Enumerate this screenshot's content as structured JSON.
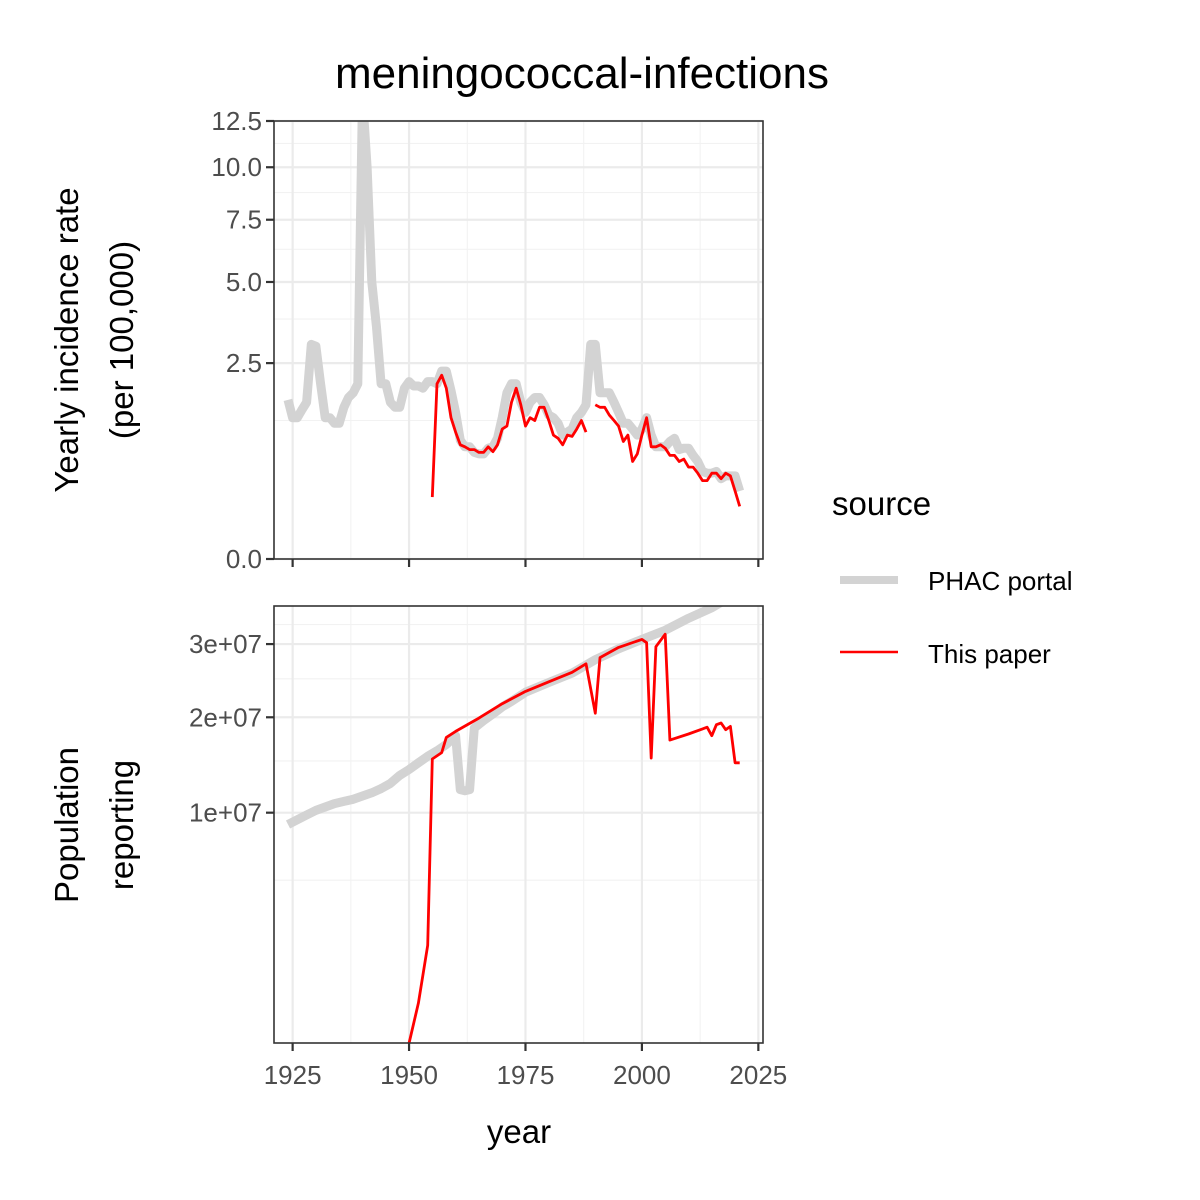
{
  "title": "meningococcal-infections",
  "colors": {
    "phac": "#d3d3d3",
    "paper": "#ff0000"
  },
  "chart_data": [
    {
      "type": "line",
      "panel": "top",
      "ylabel_lines": [
        "Yearly incidence rate",
        "(per 100,000)"
      ],
      "y_scale": "sqrt",
      "ylim": [
        0,
        12.5
      ],
      "y_ticks": [
        0,
        2.5,
        5,
        7.5,
        10,
        12.5
      ],
      "y_tick_labels": [
        "0.0",
        "2.5",
        "5.0",
        "7.5",
        "10.0",
        "12.5"
      ],
      "x_ticks": [
        1925,
        1950,
        1975,
        2000,
        2025
      ],
      "xlim": [
        1921,
        2026
      ],
      "grid": true,
      "series": [
        {
          "name": "PHAC portal",
          "x": [
            1924,
            1925,
            1926,
            1927,
            1928,
            1929,
            1930,
            1931,
            1932,
            1933,
            1934,
            1935,
            1936,
            1937,
            1938,
            1939,
            1940,
            1941,
            1942,
            1943,
            1944,
            1945,
            1946,
            1947,
            1948,
            1949,
            1950,
            1951,
            1952,
            1953,
            1954,
            1955,
            1956,
            1957,
            1958,
            1959,
            1960,
            1961,
            1962,
            1963,
            1964,
            1965,
            1966,
            1967,
            1968,
            1969,
            1970,
            1971,
            1972,
            1973,
            1974,
            1975,
            1976,
            1977,
            1978,
            1979,
            1980,
            1981,
            1982,
            1983,
            1984,
            1985,
            1986,
            1987,
            1988,
            1989,
            1990,
            1991,
            1992,
            1993,
            1994,
            1995,
            1996,
            1997,
            1998,
            1999,
            2000,
            2001,
            2002,
            2003,
            2004,
            2005,
            2006,
            2007,
            2008,
            2009,
            2010,
            2011,
            2012,
            2013,
            2014,
            2015,
            2016,
            2017,
            2018,
            2019,
            2020,
            2021
          ],
          "y": [
            1.65,
            1.3,
            1.3,
            1.45,
            1.6,
            3.0,
            2.95,
            2.0,
            1.3,
            1.3,
            1.2,
            1.2,
            1.5,
            1.7,
            1.8,
            2.0,
            14.0,
            10.0,
            5.0,
            3.5,
            2.0,
            2.0,
            1.6,
            1.5,
            1.5,
            1.9,
            2.05,
            1.95,
            1.95,
            1.9,
            2.05,
            2.05,
            2.0,
            2.3,
            2.3,
            1.85,
            1.4,
            0.92,
            0.82,
            0.82,
            0.74,
            0.72,
            0.72,
            0.8,
            0.82,
            0.95,
            1.3,
            1.8,
            2.0,
            2.0,
            1.6,
            1.4,
            1.6,
            1.7,
            1.7,
            1.55,
            1.35,
            1.3,
            1.2,
            1.0,
            1.05,
            1.1,
            1.3,
            1.4,
            1.55,
            3.0,
            3.0,
            1.8,
            1.8,
            1.8,
            1.6,
            1.4,
            1.2,
            1.2,
            1.1,
            1.0,
            1.1,
            1.3,
            1.0,
            0.82,
            0.82,
            0.82,
            0.9,
            0.95,
            0.78,
            0.8,
            0.8,
            0.7,
            0.62,
            0.5,
            0.48,
            0.48,
            0.5,
            0.42,
            0.45,
            0.45,
            0.45,
            0.3
          ]
        },
        {
          "name": "This paper",
          "x": [
            1955,
            1956,
            1957,
            1958,
            1959,
            1960,
            1961,
            1962,
            1963,
            1964,
            1965,
            1966,
            1967,
            1968,
            1969,
            1970,
            1971,
            1972,
            1973,
            1974,
            1975,
            1976,
            1977,
            1978,
            1979,
            1980,
            1981,
            1982,
            1983,
            1984,
            1985,
            1986,
            1987,
            1988,
            null,
            1990,
            1991,
            1992,
            1993,
            1994,
            1995,
            1996,
            1997,
            1998,
            1999,
            2000,
            2001,
            2002,
            2003,
            2004,
            2005,
            2006,
            2007,
            2008,
            2009,
            2010,
            2011,
            2012,
            2013,
            2014,
            2015,
            2016,
            2017,
            2018,
            2019,
            2020,
            2021
          ],
          "y": [
            0.25,
            2.0,
            2.2,
            1.9,
            1.3,
            1.05,
            0.85,
            0.82,
            0.78,
            0.78,
            0.74,
            0.74,
            0.82,
            0.75,
            0.85,
            1.1,
            1.15,
            1.6,
            1.9,
            1.55,
            1.15,
            1.3,
            1.25,
            1.5,
            1.5,
            1.25,
            1.0,
            0.95,
            0.85,
            1.0,
            0.98,
            1.1,
            1.25,
            1.05,
            null,
            1.55,
            1.5,
            1.5,
            1.35,
            1.25,
            1.15,
            0.9,
            1.0,
            0.62,
            0.72,
            1.0,
            1.3,
            0.82,
            0.82,
            0.85,
            0.8,
            0.7,
            0.7,
            0.62,
            0.65,
            0.55,
            0.55,
            0.48,
            0.4,
            0.4,
            0.48,
            0.48,
            0.42,
            0.48,
            0.45,
            0.3,
            0.18
          ]
        }
      ]
    },
    {
      "type": "line",
      "panel": "bottom",
      "ylabel_lines": [
        "Population",
        "reporting"
      ],
      "y_scale": "sqrt",
      "ylim": [
        0,
        36000000
      ],
      "y_ticks": [
        10000000,
        20000000,
        30000000
      ],
      "y_tick_labels": [
        "1e+07",
        "2e+07",
        "3e+07"
      ],
      "x_ticks": [
        1925,
        1950,
        1975,
        2000,
        2025
      ],
      "x_tick_labels": [
        "1925",
        "1950",
        "1975",
        "2000",
        "2025"
      ],
      "xlim": [
        1921,
        2026
      ],
      "xlabel": "year",
      "grid": true,
      "series": [
        {
          "name": "PHAC portal",
          "x": [
            1924,
            1926,
            1928,
            1930,
            1932,
            1934,
            1936,
            1938,
            1940,
            1942,
            1944,
            1946,
            1948,
            1950,
            1952,
            1954,
            1956,
            1958,
            1960,
            1961,
            1962,
            1963,
            1964,
            1966,
            1968,
            1970,
            1972,
            1975,
            1980,
            1985,
            1990,
            1995,
            2000,
            2005,
            2010,
            2015,
            2020,
            2021
          ],
          "y": [
            9000000,
            9400000,
            9800000,
            10200000,
            10500000,
            10800000,
            11000000,
            11200000,
            11500000,
            11800000,
            12200000,
            12700000,
            13500000,
            14100000,
            14800000,
            15500000,
            16100000,
            16800000,
            17800000,
            12100000,
            12000000,
            12100000,
            18700000,
            19600000,
            20400000,
            21300000,
            22000000,
            23200000,
            24500000,
            25800000,
            27700000,
            29300000,
            30700000,
            32100000,
            34000000,
            35700000,
            38000000,
            38200000
          ]
        },
        {
          "name": "This paper",
          "x": [
            1950,
            1952,
            1954,
            1955,
            1957,
            1958,
            1960,
            1965,
            1970,
            1975,
            1980,
            1985,
            1988,
            1990,
            1991,
            1995,
            2000,
            2001,
            2002,
            2003,
            2005,
            2006,
            2010,
            2013,
            2014,
            2015,
            2016,
            2017,
            2018,
            2019,
            2020,
            2021
          ],
          "y": [
            0,
            300000,
            1800000,
            15200000,
            15900000,
            17600000,
            18300000,
            19900000,
            21700000,
            23300000,
            24600000,
            25900000,
            27100000,
            20500000,
            28000000,
            29500000,
            30700000,
            30200000,
            15300000,
            29600000,
            31500000,
            17300000,
            18000000,
            18600000,
            18800000,
            17800000,
            19100000,
            19300000,
            18500000,
            18900000,
            14800000,
            14800000
          ]
        }
      ]
    }
  ],
  "legend": {
    "title": "source",
    "items": [
      {
        "label": "PHAC portal",
        "color": "#d3d3d3",
        "stroke_width": 8
      },
      {
        "label": "This paper",
        "color": "#ff0000",
        "stroke_width": 2.5
      }
    ]
  }
}
